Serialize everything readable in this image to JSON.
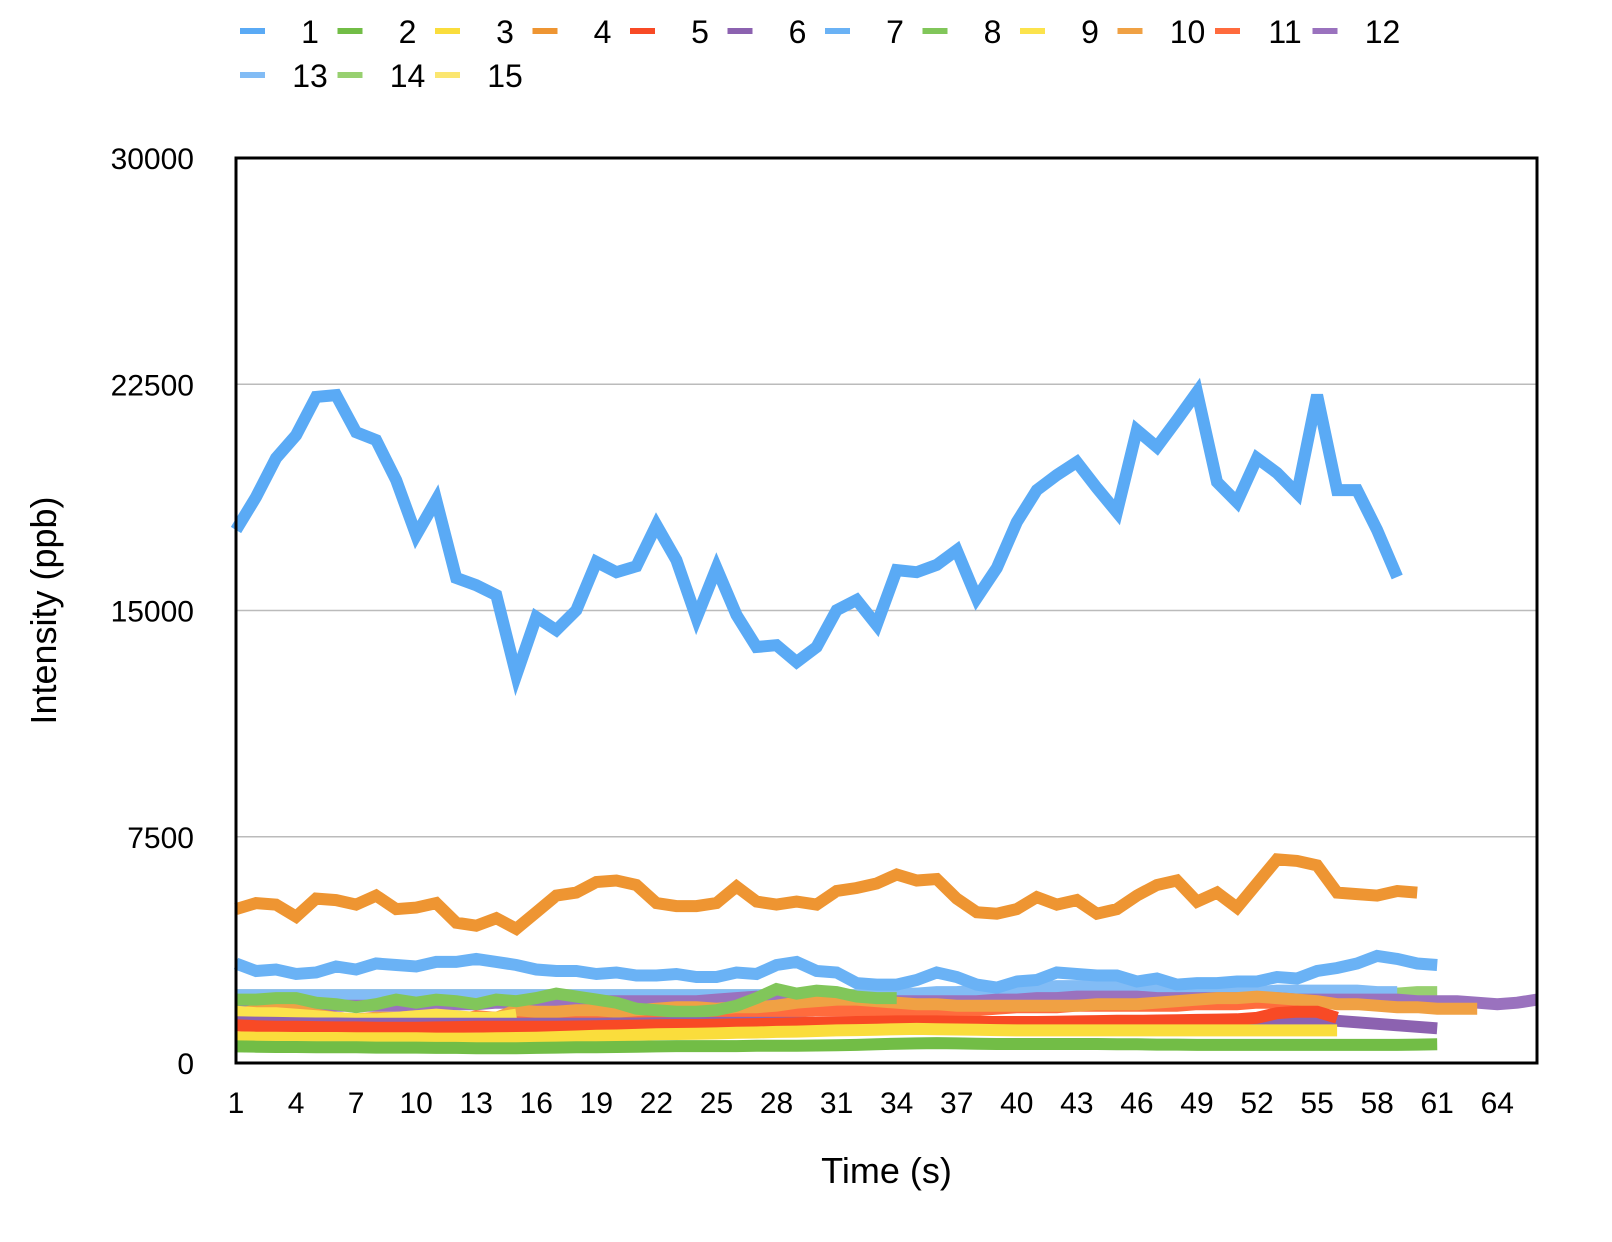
{
  "chart_data": {
    "type": "line",
    "title": "",
    "xlabel": "Time (s)",
    "ylabel": "Intensity (ppb)",
    "xlim": [
      1,
      66
    ],
    "ylim": [
      0,
      30000
    ],
    "yticks": [
      0,
      7500,
      15000,
      22500,
      30000
    ],
    "xticks": [
      1,
      4,
      7,
      10,
      13,
      16,
      19,
      22,
      25,
      28,
      31,
      34,
      37,
      40,
      43,
      46,
      49,
      52,
      55,
      58,
      61,
      64
    ],
    "grid": "horizontal",
    "legend": "top",
    "series": [
      {
        "name": "1",
        "color": "#5aaaf5",
        "x_start": 1,
        "values": [
          17670,
          18760,
          20050,
          20810,
          22080,
          22140,
          20910,
          20650,
          19320,
          17500,
          18660,
          16080,
          15840,
          15510,
          12860,
          14780,
          14350,
          15010,
          16610,
          16270,
          16470,
          17830,
          16670,
          14750,
          16410,
          14850,
          13790,
          13850,
          13290,
          13790,
          15010,
          15350,
          14520,
          16340,
          16270,
          16510,
          17000,
          15410,
          16410,
          17930,
          18990,
          19490,
          19920,
          19060,
          18260,
          20980,
          20420,
          21310,
          22240,
          19260,
          18590,
          20050,
          19560,
          18890,
          22140,
          18990,
          18990,
          17670,
          16110
        ]
      },
      {
        "name": "2",
        "color": "#72bd46",
        "x_start": 1,
        "values": [
          550,
          540,
          530,
          530,
          520,
          520,
          520,
          510,
          510,
          510,
          500,
          500,
          490,
          490,
          490,
          500,
          510,
          520,
          520,
          530,
          540,
          550,
          560,
          560,
          560,
          560,
          570,
          570,
          570,
          580,
          590,
          600,
          620,
          640,
          650,
          660,
          650,
          640,
          630,
          630,
          630,
          630,
          630,
          630,
          620,
          620,
          610,
          610,
          600,
          600,
          600,
          600,
          600,
          600,
          600,
          600,
          600,
          600,
          600,
          610,
          620
        ]
      },
      {
        "name": "3",
        "color": "#fadd3c",
        "x_start": 1,
        "values": [
          850,
          840,
          840,
          830,
          830,
          830,
          820,
          820,
          820,
          820,
          810,
          810,
          810,
          820,
          830,
          840,
          860,
          880,
          900,
          910,
          930,
          950,
          960,
          970,
          980,
          1000,
          1010,
          1030,
          1040,
          1060,
          1080,
          1090,
          1100,
          1120,
          1130,
          1120,
          1110,
          1100,
          1090,
          1080,
          1080,
          1080,
          1080,
          1080,
          1080,
          1080,
          1080,
          1080,
          1080,
          1080,
          1080,
          1080,
          1080,
          1080,
          1080,
          1080
        ]
      },
      {
        "name": "4",
        "color": "#ee9532",
        "x_start": 1,
        "values": [
          5100,
          5300,
          5250,
          4850,
          5450,
          5400,
          5250,
          5550,
          5100,
          5150,
          5300,
          4650,
          4550,
          4800,
          4450,
          5000,
          5550,
          5650,
          6000,
          6050,
          5900,
          5300,
          5200,
          5200,
          5300,
          5850,
          5350,
          5250,
          5350,
          5250,
          5700,
          5800,
          5950,
          6250,
          6050,
          6100,
          5450,
          5000,
          4950,
          5100,
          5500,
          5250,
          5400,
          4950,
          5100,
          5550,
          5900,
          6050,
          5350,
          5650,
          5150,
          5950,
          6750,
          6700,
          6550,
          5650,
          5600,
          5550,
          5700,
          5650
        ]
      },
      {
        "name": "5",
        "color": "#f84a25",
        "x_start": 1,
        "values": [
          1250,
          1220,
          1200,
          1200,
          1190,
          1180,
          1180,
          1170,
          1170,
          1170,
          1180,
          1190,
          1200,
          1200,
          1200,
          1200,
          1200,
          1210,
          1220,
          1230,
          1240,
          1250,
          1260,
          1260,
          1270,
          1280,
          1290,
          1300,
          1320,
          1340,
          1350,
          1360,
          1370,
          1380,
          1380,
          1380,
          1370,
          1360,
          1360,
          1360,
          1360,
          1370,
          1380,
          1390,
          1400,
          1400,
          1410,
          1420,
          1430,
          1440,
          1450,
          1500,
          1650,
          1700,
          1700,
          1500
        ]
      },
      {
        "name": "6",
        "color": "#8c62b0",
        "x_start": 1,
        "values": [
          1350,
          1340,
          1330,
          1320,
          1310,
          1310,
          1300,
          1300,
          1300,
          1300,
          1300,
          1300,
          1300,
          1300,
          1300,
          1300,
          1300,
          1300,
          1300,
          1310,
          1310,
          1320,
          1320,
          1320,
          1330,
          1330,
          1330,
          1330,
          1330,
          1330,
          1330,
          1330,
          1330,
          1330,
          1330,
          1320,
          1320,
          1320,
          1310,
          1310,
          1310,
          1310,
          1310,
          1310,
          1310,
          1310,
          1300,
          1300,
          1300,
          1300,
          1300,
          1350,
          1400,
          1450,
          1450,
          1400,
          1350,
          1300,
          1250,
          1200,
          1150
        ]
      },
      {
        "name": "7",
        "color": "#6ab2f5",
        "x_start": 1,
        "values": [
          3300,
          3050,
          3100,
          2950,
          3000,
          3200,
          3100,
          3300,
          3250,
          3200,
          3350,
          3350,
          3450,
          3350,
          3250,
          3100,
          3050,
          3050,
          2950,
          3000,
          2900,
          2900,
          2950,
          2850,
          2850,
          3000,
          2950,
          3250,
          3350,
          3050,
          3000,
          2650,
          2600,
          2600,
          2750,
          3000,
          2850,
          2600,
          2500,
          2700,
          2750,
          3000,
          2950,
          2900,
          2900,
          2700,
          2800,
          2600,
          2650,
          2650,
          2700,
          2700,
          2850,
          2800,
          3050,
          3150,
          3300,
          3550,
          3450,
          3300,
          3250
        ]
      },
      {
        "name": "8",
        "color": "#81c65a",
        "x_start": 1,
        "values": [
          2100,
          2100,
          2150,
          2150,
          2000,
          1950,
          1850,
          1950,
          2100,
          2000,
          2100,
          2050,
          1950,
          2100,
          2050,
          2150,
          2300,
          2200,
          2100,
          2000,
          1800,
          1750,
          1700,
          1700,
          1750,
          1900,
          2150,
          2450,
          2300,
          2400,
          2350,
          2200,
          2150,
          2150
        ]
      },
      {
        "name": "9",
        "color": "#fce34c",
        "x_start": 1,
        "values": [
          1700,
          1650,
          1650,
          1600,
          1550,
          1500,
          1450,
          1450,
          1500,
          1550,
          1600,
          1550,
          1500,
          1500,
          1600
        ]
      },
      {
        "name": "10",
        "color": "#f0a144",
        "x_start": 1,
        "values": [
          1600,
          1750,
          1800,
          1750,
          1600,
          1500,
          1450,
          1500,
          1500,
          1550,
          1500,
          1450,
          1500,
          1500,
          1750,
          1700,
          1700,
          1750,
          1750,
          1700,
          1750,
          1800,
          1850,
          1850,
          1800,
          1850,
          1850,
          1900,
          2000,
          2050,
          2100,
          2100,
          2050,
          2000,
          1950,
          1950,
          1900,
          1900,
          1900,
          1900,
          1900,
          1900,
          1900,
          1950,
          1950,
          1950,
          2000,
          2050,
          2100,
          2150,
          2150,
          2200,
          2150,
          2100,
          2050,
          1950,
          1950,
          1900,
          1850,
          1850,
          1800,
          1800,
          1800
        ]
      },
      {
        "name": "11",
        "color": "#ff6b3d",
        "x_start": 1,
        "values": [
          1500,
          1450,
          1400,
          1400,
          1400,
          1450,
          1400,
          1400,
          1400,
          1450,
          1400,
          1400,
          1550,
          1500,
          1500,
          1450,
          1400,
          1400,
          1400,
          1400,
          1450,
          1450,
          1500,
          1500,
          1550,
          1550,
          1550,
          1650,
          1700,
          1750,
          1750,
          1750,
          1750,
          1750,
          1750,
          1750,
          1750,
          1750,
          1800,
          1850,
          1850,
          1850,
          1900,
          1900,
          1900,
          1900,
          1900,
          1900,
          1950,
          1950,
          1950,
          2000,
          2000,
          2000,
          2000
        ]
      },
      {
        "name": "12",
        "color": "#9a72be",
        "x_start": 1,
        "values": [
          1900,
          1900,
          1900,
          1900,
          1900,
          1900,
          1900,
          1900,
          1900,
          1900,
          1900,
          1950,
          1950,
          2000,
          2000,
          2000,
          2050,
          2050,
          2050,
          2050,
          2050,
          2050,
          2050,
          2050,
          2100,
          2150,
          2200,
          2150,
          2100,
          2050,
          2050,
          2050,
          2050,
          2050,
          2050,
          2050,
          2050,
          2050,
          2100,
          2100,
          2150,
          2150,
          2200,
          2200,
          2200,
          2200,
          2150,
          2150,
          2150,
          2150,
          2150,
          2150,
          2150,
          2100,
          2100,
          2100,
          2100,
          2100,
          2100,
          2050,
          2050,
          2050,
          2000,
          1950,
          2000,
          2100
        ]
      },
      {
        "name": "13",
        "color": "#82bcf5",
        "x_start": 1,
        "values": [
          2250,
          2250,
          2250,
          2250,
          2250,
          2250,
          2250,
          2250,
          2250,
          2250,
          2250,
          2250,
          2250,
          2250,
          2250,
          2250,
          2250,
          2250,
          2250,
          2250,
          2250,
          2250,
          2250,
          2250,
          2250,
          2250,
          2250,
          2250,
          2250,
          2250,
          2250,
          2250,
          2250,
          2300,
          2300,
          2350,
          2350,
          2400,
          2450,
          2450,
          2500,
          2550,
          2550,
          2550,
          2550,
          2550,
          2500,
          2450,
          2400,
          2350,
          2350,
          2350,
          2400,
          2400,
          2400,
          2400,
          2400,
          2350,
          2350
        ]
      },
      {
        "name": "14",
        "color": "#98d070",
        "x_start": 1,
        "values": [
          2200,
          2200,
          2200,
          2200,
          2200,
          2200,
          2200,
          2200,
          2200,
          2200,
          2200,
          2200,
          2200,
          2200,
          2200,
          2200,
          2200,
          2200,
          2200,
          2200,
          2200,
          2200,
          2200,
          2200,
          2200,
          2200,
          2200,
          2200,
          2200,
          2200,
          2200,
          2200,
          2200,
          2200,
          2200,
          2200,
          2200,
          2200,
          2200,
          2200,
          2200,
          2200,
          2200,
          2200,
          2200,
          2200,
          2200,
          2200,
          2200,
          2200,
          2200,
          2200,
          2200,
          2200,
          2250,
          2250,
          2250,
          2300,
          2300,
          2350,
          2350
        ]
      },
      {
        "name": "15",
        "color": "#fbe670",
        "x_start": 1,
        "values": [
          2250,
          2250,
          2250,
          2250,
          2250,
          2250,
          2250,
          2250,
          2250,
          2250,
          2250,
          2250,
          2250,
          2250,
          2250,
          2250,
          2250,
          2250,
          2250,
          2250,
          2250,
          2250,
          2250,
          2250,
          2250,
          2250,
          2250,
          2250,
          2250,
          2250,
          2250,
          2250,
          2250,
          2250,
          2300,
          2300,
          2300,
          2300,
          2300,
          2300,
          2300,
          2300,
          2300,
          2300
        ]
      }
    ]
  }
}
